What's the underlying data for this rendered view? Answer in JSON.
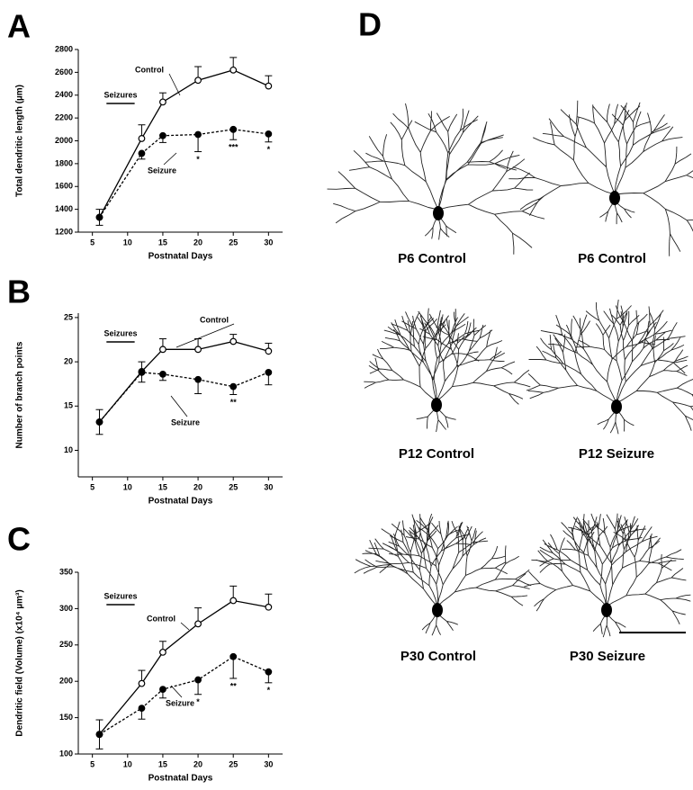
{
  "chart_data": [
    {
      "type": "line",
      "panel": "A",
      "xlabel": "Postnatal Days",
      "ylabel": "Total dendritic length (µm)",
      "x": [
        6,
        12,
        15,
        20,
        25,
        30
      ],
      "xlim": [
        3,
        32
      ],
      "xticks": [
        5,
        10,
        15,
        20,
        25,
        30
      ],
      "ylim": [
        1200,
        2800
      ],
      "yticks": [
        1200,
        1400,
        1600,
        1800,
        2000,
        2200,
        2400,
        2600,
        2800
      ],
      "seizures": {
        "label": "Seizures",
        "x": [
          7,
          11
        ]
      },
      "series": [
        {
          "name": "Control",
          "color": "#000",
          "marker": "open",
          "line": "solid",
          "values": [
            1330,
            2020,
            2340,
            2530,
            2620,
            2480
          ],
          "errors": [
            70,
            120,
            80,
            120,
            110,
            90
          ]
        },
        {
          "name": "Seizure",
          "color": "#000",
          "marker": "filled",
          "line": "dashed",
          "values": [
            1330,
            1890,
            2045,
            2055,
            2100,
            2060
          ],
          "errors": [
            70,
            50,
            60,
            150,
            90,
            70
          ],
          "significance": [
            null,
            null,
            null,
            "*",
            "***",
            "*"
          ]
        }
      ]
    },
    {
      "type": "line",
      "panel": "B",
      "xlabel": "Postnatal Days",
      "ylabel": "Number of branch points",
      "x": [
        6,
        12,
        15,
        20,
        25,
        30
      ],
      "xlim": [
        3,
        32
      ],
      "xticks": [
        5,
        10,
        15,
        20,
        25,
        30
      ],
      "ylim": [
        7,
        25.5
      ],
      "yticks": [
        10,
        15,
        20,
        25
      ],
      "seizures": {
        "label": "Seizures",
        "x": [
          7,
          11
        ]
      },
      "series": [
        {
          "name": "Control",
          "color": "#000",
          "marker": "open",
          "line": "solid",
          "values": [
            13.2,
            18.9,
            21.4,
            21.4,
            22.3,
            21.2
          ],
          "errors": [
            1.4,
            1.1,
            1.2,
            1.2,
            0.8,
            0.9
          ]
        },
        {
          "name": "Seizure",
          "color": "#000",
          "marker": "filled",
          "line": "dashed",
          "values": [
            13.2,
            18.8,
            18.6,
            18.0,
            17.2,
            18.8
          ],
          "errors": [
            1.4,
            1.1,
            0.7,
            1.6,
            0.9,
            1.4
          ],
          "significance": [
            null,
            null,
            null,
            null,
            "**",
            null
          ]
        }
      ]
    },
    {
      "type": "line",
      "panel": "C",
      "xlabel": "Postnatal Days",
      "ylabel": "Dendritic field (Volume) (x10⁴ µm³)",
      "x": [
        6,
        12,
        15,
        20,
        25,
        30
      ],
      "xlim": [
        3,
        32
      ],
      "xticks": [
        5,
        10,
        15,
        20,
        25,
        30
      ],
      "ylim": [
        100,
        350
      ],
      "yticks": [
        100,
        150,
        200,
        250,
        300,
        350
      ],
      "seizures": {
        "label": "Seizures",
        "x": [
          7,
          11
        ]
      },
      "series": [
        {
          "name": "Control",
          "color": "#000",
          "marker": "open",
          "line": "solid",
          "values": [
            127,
            197,
            240,
            279,
            311,
            302
          ],
          "errors": [
            20,
            18,
            15,
            22,
            20,
            18
          ]
        },
        {
          "name": "Seizure",
          "color": "#000",
          "marker": "filled",
          "line": "dashed",
          "values": [
            127,
            163,
            189,
            202,
            234,
            213
          ],
          "errors": [
            20,
            15,
            12,
            20,
            30,
            15
          ],
          "significance": [
            null,
            null,
            null,
            "*",
            "**",
            "*"
          ]
        }
      ]
    }
  ],
  "panel_d": {
    "letter": "D",
    "labels": [
      "P6 Control",
      "P6 Control",
      "P12 Control",
      "P12 Seizure",
      "P30 Control",
      "P30 Seizure"
    ]
  }
}
